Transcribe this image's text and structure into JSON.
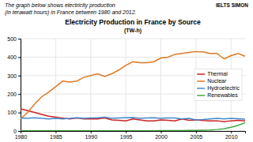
{
  "chart_data": {
    "type": "line",
    "title": "Electricity Production in France by Source",
    "subtitle": "(TW-h)",
    "annotations": [
      "The graph below shows electricity production",
      "(in terawatt hours) in France between 1980 and 2012.",
      "IELTS SIMON"
    ],
    "x": [
      1980,
      1981,
      1982,
      1983,
      1984,
      1985,
      1986,
      1987,
      1988,
      1989,
      1990,
      1991,
      1992,
      1993,
      1994,
      1995,
      1996,
      1997,
      1998,
      1999,
      2000,
      2001,
      2002,
      2003,
      2004,
      2005,
      2006,
      2007,
      2008,
      2009,
      2010,
      2011,
      2012
    ],
    "series": [
      {
        "name": "Thermal",
        "color": "#cc2222",
        "values": [
          120,
          110,
          100,
          90,
          80,
          75,
          70,
          65,
          70,
          65,
          65,
          65,
          70,
          60,
          58,
          55,
          65,
          60,
          55,
          55,
          60,
          58,
          55,
          65,
          58,
          60,
          57,
          55,
          55,
          50,
          55,
          58,
          55
        ]
      },
      {
        "name": "Nuclear",
        "color": "#e07820",
        "values": [
          65,
          100,
          145,
          185,
          210,
          240,
          270,
          265,
          270,
          290,
          300,
          310,
          295,
          310,
          330,
          355,
          375,
          370,
          370,
          375,
          395,
          400,
          415,
          420,
          425,
          430,
          428,
          420,
          420,
          390,
          408,
          420,
          405
        ]
      },
      {
        "name": "Hydroelectric",
        "color": "#4488cc",
        "values": [
          70,
          68,
          72,
          68,
          65,
          68,
          65,
          68,
          72,
          68,
          70,
          72,
          75,
          68,
          70,
          72,
          73,
          68,
          70,
          72,
          68,
          70,
          70,
          65,
          68,
          60,
          62,
          65,
          68,
          65,
          68,
          66,
          64
        ]
      },
      {
        "name": "Renewables",
        "color": "#44aa44",
        "values": [
          1,
          1,
          1,
          1,
          1,
          1,
          1,
          1,
          1,
          1,
          1,
          1,
          1,
          1,
          1,
          1,
          1,
          1,
          1,
          1,
          2,
          2,
          2,
          2,
          3,
          3,
          4,
          5,
          8,
          12,
          20,
          30,
          45
        ]
      }
    ],
    "xlim": [
      1980,
      2012
    ],
    "ylim": [
      0,
      500
    ],
    "xticks": [
      1980,
      1985,
      1990,
      1995,
      2000,
      2005,
      2010
    ],
    "yticks": [
      0,
      100,
      200,
      300,
      400,
      500
    ],
    "grid": true,
    "legend": "right"
  }
}
